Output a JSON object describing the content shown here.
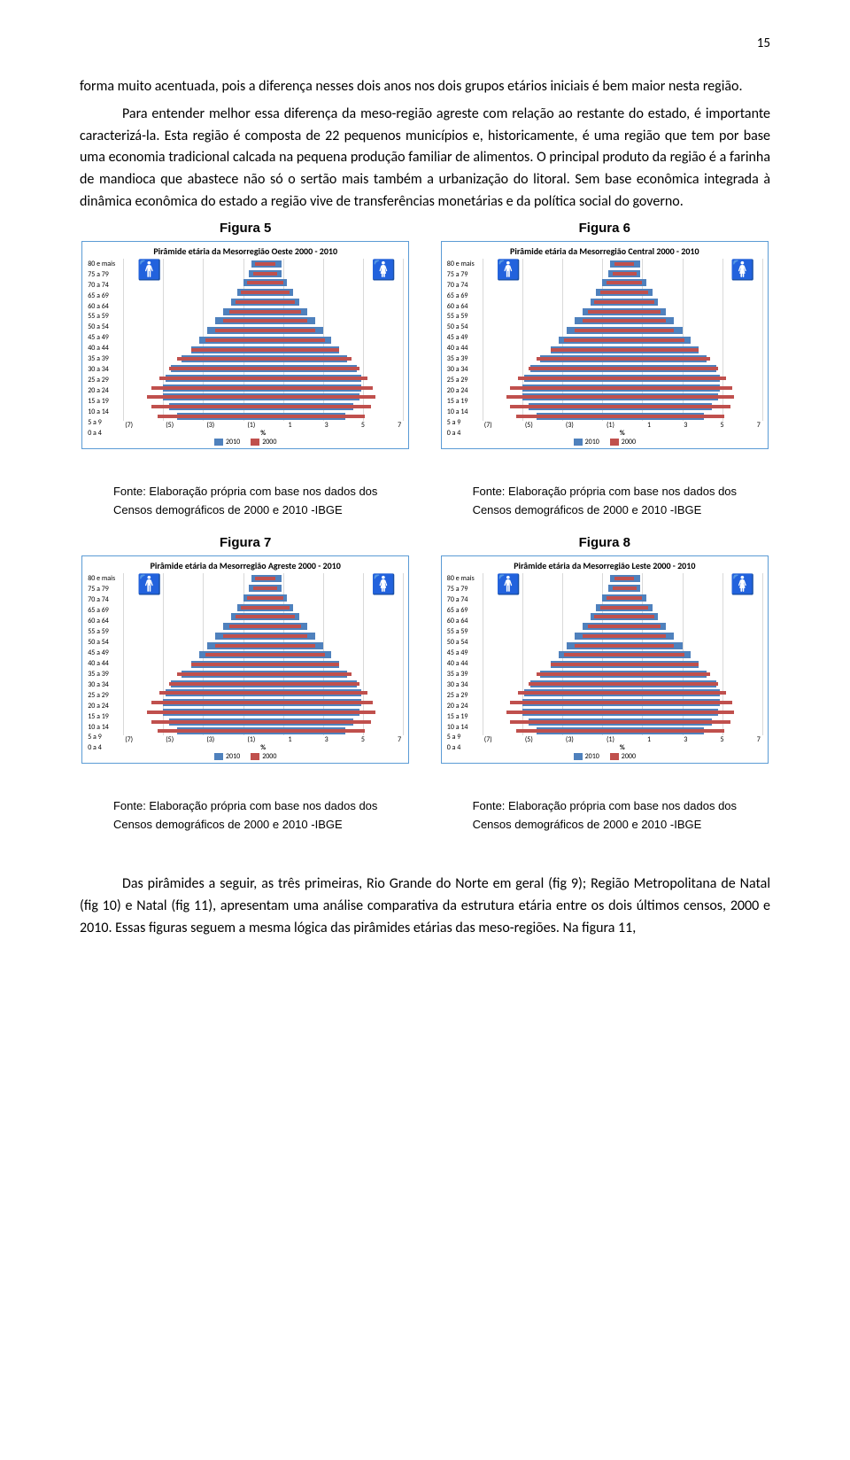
{
  "page_number": "15",
  "paragraphs": {
    "p1": "forma muito acentuada, pois a diferença nesses dois anos nos dois grupos etários iniciais é bem maior nesta região.",
    "p2": "Para entender melhor essa diferença da meso-região agreste com relação ao restante do estado, é importante caracterizá-la. Esta região é composta de 22 pequenos municípios e, historicamente, é uma região que tem por base uma economia tradicional calcada na pequena produção familiar de alimentos. O principal produto da região é a farinha de mandioca que abastece não só o sertão mais também a urbanização do litoral. Sem base econômica integrada à dinâmica econômica do estado a região vive de transferências monetárias  e da política social do governo.",
    "final": "Das pirâmides a seguir, as três primeiras, Rio Grande do Norte em geral (fig 9); Região Metropolitana de Natal (fig 10) e Natal (fig 11), apresentam uma análise comparativa da estrutura etária entre os dois últimos censos, 2000 e 2010. Essas figuras seguem a mesma lógica das pirâmides etárias das meso-regiões. Na figura 11,"
  },
  "fig_labels": {
    "f5": "Figura 5",
    "f6": "Figura 6",
    "f7": "Figura 7",
    "f8": "Figura 8"
  },
  "source_text": {
    "line1": "Fonte: Elaboração própria com base nos dados dos",
    "line2": "Censos demográficos de 2000 e 2010 -IBGE"
  },
  "pyramid": {
    "age_labels": [
      "80 e mais",
      "75 a 79",
      "70 a 74",
      "65 a 69",
      "60 a 64",
      "55 a 59",
      "50 a 54",
      "45 a 49",
      "40 a 44",
      "35 a 39",
      "30 a 34",
      "25 a 29",
      "20 a 24",
      "15 a 19",
      "10 a 14",
      "5 a 9",
      "0 a 4"
    ],
    "xticks_left": [
      "(7)",
      "(5)",
      "(3)",
      "(1)"
    ],
    "xticks_right": [
      "1",
      "3",
      "5",
      "7"
    ],
    "xlabel": "%",
    "legend_2010": "2010",
    "legend_2000": "2000",
    "colors": {
      "b2010": "#4f81bd",
      "b2000": "#c0504d",
      "border": "#5b9bd5",
      "grid": "#d9d9d9",
      "male": "#1f4e79",
      "female": "#c00000"
    },
    "xlim": [
      -7,
      7
    ],
    "titles": {
      "f5": "Pirâmide etária da Mesorregião Oeste 2000 - 2010",
      "f6": "Pirâmide etária da Mesorregião Central 2000 - 2010",
      "f7": "Pirâmide etária da Mesorregião Agreste 2000 - 2010",
      "f8": "Pirâmide etária da Mesorregião Leste 2000 - 2010"
    },
    "data_2010_male": [
      0.6,
      0.7,
      1.0,
      1.3,
      1.6,
      2.0,
      2.4,
      2.8,
      3.2,
      3.6,
      4.1,
      4.6,
      4.9,
      5.0,
      5.0,
      4.7,
      4.3
    ],
    "data_2010_female": [
      0.9,
      0.9,
      1.2,
      1.5,
      1.8,
      2.2,
      2.6,
      3.0,
      3.4,
      3.8,
      4.2,
      4.7,
      4.9,
      4.9,
      4.8,
      4.5,
      4.1
    ],
    "data_2000_male": [
      0.4,
      0.5,
      0.8,
      1.1,
      1.4,
      1.7,
      2.0,
      2.4,
      2.9,
      3.6,
      4.3,
      4.7,
      5.2,
      5.6,
      5.8,
      5.6,
      5.3
    ],
    "data_2000_female": [
      0.6,
      0.7,
      1.0,
      1.3,
      1.6,
      1.9,
      2.2,
      2.6,
      3.1,
      3.8,
      4.4,
      4.8,
      5.2,
      5.5,
      5.6,
      5.4,
      5.1
    ]
  }
}
